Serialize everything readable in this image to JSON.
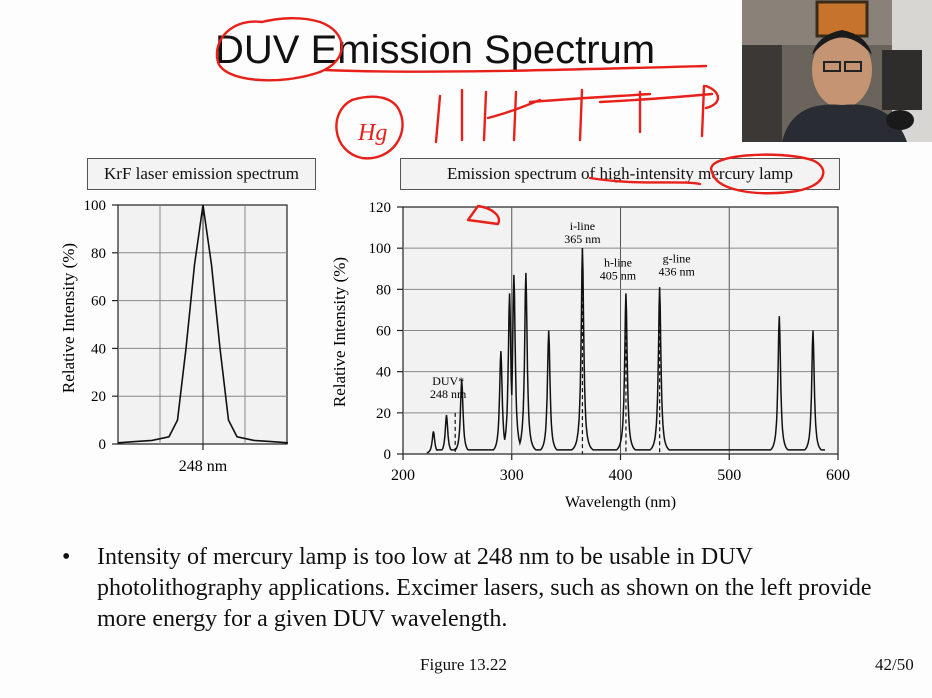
{
  "slide": {
    "title": "DUV Emission Spectrum",
    "left_panel_label": "KrF laser emission spectrum",
    "right_panel_label": "Emission spectrum of high-intensity mercury lamp",
    "bullet_text": "Intensity of mercury lamp is too low at 248 nm to be usable in DUV photolithography applications. Excimer lasers, such as shown on the left provide more energy for a given DUV wavelength.",
    "figure_caption": "Figure 13.22",
    "page_number": "42/50",
    "annotation_text": "Hg"
  },
  "chart_data": [
    {
      "type": "line",
      "title": "KrF laser emission spectrum",
      "xlabel": "",
      "ylabel": "Relative Intensity (%)",
      "x_tick_label": "248 nm",
      "ylim": [
        0,
        100
      ],
      "yticks": [
        0,
        20,
        40,
        60,
        80,
        100
      ],
      "x": [
        -10,
        -8,
        -6,
        -4,
        -3,
        -2,
        -1,
        0,
        1,
        2,
        3,
        4,
        6,
        8,
        10
      ],
      "y": [
        0.5,
        1,
        1.5,
        3,
        10,
        40,
        75,
        100,
        75,
        40,
        10,
        3,
        1.5,
        1,
        0.5
      ],
      "grid": true
    },
    {
      "type": "line",
      "title": "Emission spectrum of high-intensity mercury lamp",
      "xlabel": "Wavelength (nm)",
      "ylabel": "Relative Intensity (%)",
      "xlim": [
        200,
        600
      ],
      "ylim": [
        0,
        120
      ],
      "xticks": [
        200,
        300,
        400,
        500,
        600
      ],
      "yticks": [
        0,
        20,
        40,
        60,
        80,
        100,
        120
      ],
      "peaks": [
        {
          "x": 228,
          "y": 11
        },
        {
          "x": 240,
          "y": 19
        },
        {
          "x": 254,
          "y": 36
        },
        {
          "x": 290,
          "y": 50
        },
        {
          "x": 298,
          "y": 78
        },
        {
          "x": 302,
          "y": 87
        },
        {
          "x": 313,
          "y": 88
        },
        {
          "x": 334,
          "y": 60
        },
        {
          "x": 365,
          "y": 100
        },
        {
          "x": 405,
          "y": 78
        },
        {
          "x": 436,
          "y": 81
        },
        {
          "x": 546,
          "y": 67
        },
        {
          "x": 577,
          "y": 60
        }
      ],
      "annotations": [
        {
          "x": 248,
          "y": 20,
          "label": "DUV*",
          "sub": "248 nm"
        },
        {
          "x": 365,
          "y": 100,
          "label": "i-line",
          "sub": "365 nm"
        },
        {
          "x": 405,
          "y": 78,
          "label": "h-line",
          "sub": "405 nm"
        },
        {
          "x": 436,
          "y": 81,
          "label": "g-line",
          "sub": "436 nm"
        }
      ],
      "grid": true
    }
  ],
  "colors": {
    "annotation_red": "#e8201a",
    "axis": "#111111"
  }
}
